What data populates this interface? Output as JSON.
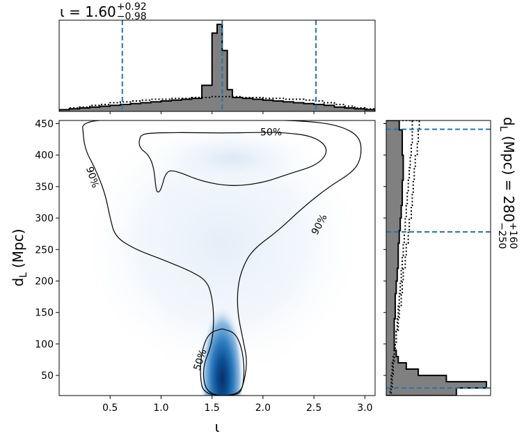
{
  "chart_data": [
    {
      "type": "histogram",
      "panel": "top-marginal",
      "title": "ι = 1.60",
      "title_sup": "+0.92",
      "title_sub": "−0.98",
      "x_bin_edges": [
        0.0,
        0.1,
        0.2,
        0.3,
        0.4,
        0.5,
        0.6,
        0.7,
        0.8,
        0.9,
        1.0,
        1.1,
        1.2,
        1.3,
        1.4,
        1.5,
        1.55,
        1.6,
        1.65,
        1.7,
        1.8,
        1.9,
        2.0,
        2.1,
        2.2,
        2.3,
        2.4,
        2.5,
        2.6,
        2.7,
        2.8,
        2.9,
        3.0,
        3.1
      ],
      "filled_values": [
        0.02,
        0.03,
        0.04,
        0.05,
        0.06,
        0.07,
        0.08,
        0.09,
        0.1,
        0.11,
        0.12,
        0.13,
        0.14,
        0.15,
        0.3,
        0.9,
        1.0,
        0.7,
        0.25,
        0.16,
        0.15,
        0.14,
        0.13,
        0.12,
        0.11,
        0.1,
        0.09,
        0.08,
        0.07,
        0.05,
        0.04,
        0.03,
        0.02
      ],
      "dotted_values": [
        0.02,
        0.04,
        0.05,
        0.07,
        0.08,
        0.1,
        0.11,
        0.12,
        0.13,
        0.14,
        0.14,
        0.15,
        0.15,
        0.16,
        0.16,
        0.17,
        0.17,
        0.17,
        0.17,
        0.17,
        0.16,
        0.16,
        0.15,
        0.15,
        0.14,
        0.14,
        0.13,
        0.12,
        0.1,
        0.08,
        0.06,
        0.04,
        0.03
      ],
      "dashed_lines_x": [
        0.62,
        1.6,
        2.52
      ],
      "xlim": [
        0.0,
        3.1
      ]
    },
    {
      "type": "heatmap",
      "panel": "joint",
      "xlabel": "ι",
      "ylabel_main": "d",
      "ylabel_sub": "L",
      "ylabel_unit": "(Mpc)",
      "xlim": [
        0.0,
        3.1
      ],
      "ylim": [
        18,
        455
      ],
      "x_ticks": [
        0.5,
        1.0,
        1.5,
        2.0,
        2.5,
        3.0
      ],
      "x_tick_labels": [
        "0.5",
        "1.0",
        "1.5",
        "2.0",
        "2.5",
        "3.0"
      ],
      "y_ticks": [
        50,
        100,
        150,
        200,
        250,
        300,
        350,
        400,
        450
      ],
      "y_tick_labels": [
        "50",
        "100",
        "150",
        "200",
        "250",
        "300",
        "350",
        "400",
        "450"
      ],
      "density_peak": {
        "x": 1.6,
        "y": 45
      },
      "contours": [
        {
          "level": "90%",
          "label": "90%",
          "points": [
            [
              0.23,
              445
            ],
            [
              0.25,
              450
            ],
            [
              0.35,
              455
            ],
            [
              0.55,
              456
            ],
            [
              1.0,
              456
            ],
            [
              1.5,
              456
            ],
            [
              2.0,
              456
            ],
            [
              2.45,
              454
            ],
            [
              2.75,
              447
            ],
            [
              2.95,
              430
            ],
            [
              2.97,
              400
            ],
            [
              2.9,
              375
            ],
            [
              2.65,
              350
            ],
            [
              2.4,
              318
            ],
            [
              2.15,
              280
            ],
            [
              1.9,
              250
            ],
            [
              1.8,
              222
            ],
            [
              1.75,
              190
            ],
            [
              1.75,
              150
            ],
            [
              1.8,
              110
            ],
            [
              1.85,
              70
            ],
            [
              1.8,
              30
            ],
            [
              1.75,
              18
            ],
            [
              1.45,
              18
            ],
            [
              1.4,
              60
            ],
            [
              1.5,
              100
            ],
            [
              1.52,
              140
            ],
            [
              1.5,
              175
            ],
            [
              1.45,
              200
            ],
            [
              1.3,
              215
            ],
            [
              1.0,
              235
            ],
            [
              0.75,
              250
            ],
            [
              0.55,
              270
            ],
            [
              0.5,
              300
            ],
            [
              0.45,
              340
            ],
            [
              0.35,
              380
            ],
            [
              0.25,
              410
            ],
            [
              0.23,
              445
            ]
          ]
        },
        {
          "level": "50%",
          "label": "50%",
          "points": [
            [
              0.8,
              430
            ],
            [
              0.85,
              435
            ],
            [
              1.2,
              436
            ],
            [
              1.6,
              435
            ],
            [
              1.95,
              436
            ],
            [
              2.2,
              436
            ],
            [
              2.5,
              430
            ],
            [
              2.65,
              410
            ],
            [
              2.55,
              385
            ],
            [
              2.25,
              370
            ],
            [
              2.0,
              356
            ],
            [
              1.7,
              350
            ],
            [
              1.4,
              358
            ],
            [
              1.15,
              375
            ],
            [
              1.05,
              375
            ],
            [
              1.0,
              345
            ],
            [
              0.97,
              340
            ],
            [
              0.95,
              345
            ],
            [
              0.93,
              380
            ],
            [
              0.88,
              400
            ],
            [
              0.8,
              410
            ],
            [
              0.78,
              420
            ],
            [
              0.8,
              430
            ]
          ]
        },
        {
          "level": "50%",
          "label": "50%",
          "points": [
            [
              1.6,
              124
            ],
            [
              1.73,
              118
            ],
            [
              1.8,
              90
            ],
            [
              1.82,
              50
            ],
            [
              1.78,
              18
            ],
            [
              1.42,
              18
            ],
            [
              1.38,
              50
            ],
            [
              1.4,
              90
            ],
            [
              1.47,
              118
            ],
            [
              1.6,
              124
            ]
          ]
        }
      ]
    },
    {
      "type": "histogram",
      "panel": "right-marginal",
      "ylabel": "d",
      "ylabel_sub": "L",
      "ylabel_rest": " (Mpc) = 280",
      "ylabel_sup": "+160",
      "ylabel_subscript": "−250",
      "y_bin_edges": [
        18,
        30,
        40,
        50,
        60,
        70,
        80,
        90,
        100,
        120,
        140,
        160,
        180,
        200,
        220,
        240,
        260,
        280,
        300,
        320,
        340,
        360,
        380,
        400,
        420,
        440,
        455
      ],
      "filled_values": [
        0.7,
        1.0,
        0.6,
        0.32,
        0.2,
        0.12,
        0.1,
        0.08,
        0.08,
        0.08,
        0.09,
        0.09,
        0.1,
        0.11,
        0.12,
        0.12,
        0.13,
        0.14,
        0.15,
        0.16,
        0.16,
        0.17,
        0.17,
        0.16,
        0.16,
        0.13
      ],
      "dotted_values": [
        0.05,
        0.06,
        0.06,
        0.07,
        0.07,
        0.08,
        0.08,
        0.09,
        0.1,
        0.11,
        0.12,
        0.13,
        0.14,
        0.15,
        0.16,
        0.17,
        0.18,
        0.19,
        0.2,
        0.21,
        0.22,
        0.23,
        0.24,
        0.25,
        0.26,
        0.26
      ],
      "dotted2_values": [
        0.04,
        0.05,
        0.05,
        0.06,
        0.06,
        0.07,
        0.08,
        0.09,
        0.1,
        0.12,
        0.13,
        0.15,
        0.16,
        0.17,
        0.19,
        0.2,
        0.22,
        0.23,
        0.25,
        0.26,
        0.27,
        0.28,
        0.29,
        0.31,
        0.32,
        0.33
      ],
      "dashed_lines_y": [
        30,
        278,
        441
      ],
      "ylim": [
        18,
        455
      ]
    }
  ]
}
